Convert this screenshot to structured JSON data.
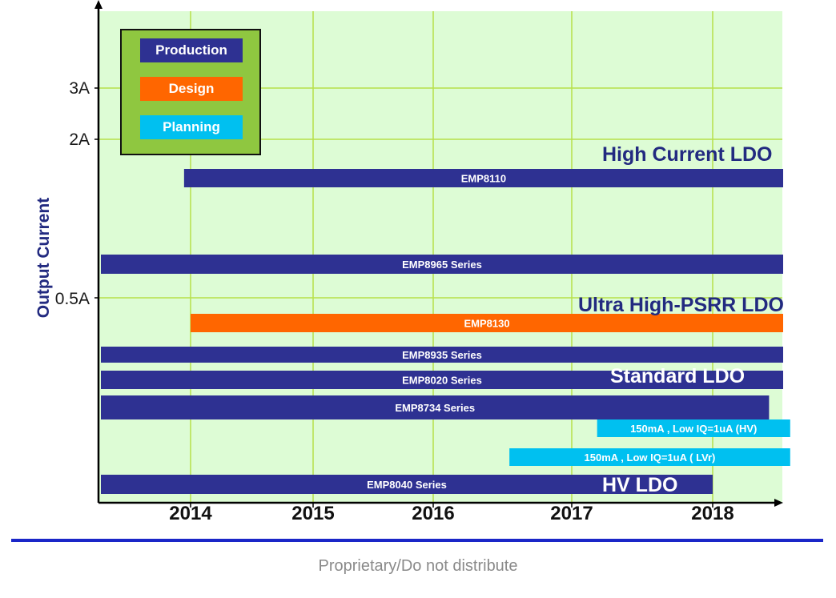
{
  "chart_data": {
    "type": "bar",
    "ylabel": "Output Current",
    "yticks": [
      "3A",
      "2A",
      "0.5A"
    ],
    "xticks": [
      "2014",
      "2015",
      "2016",
      "2017",
      "2018"
    ],
    "xlim": [
      2013.3,
      2018.5
    ],
    "legend": [
      {
        "label": "Production",
        "color": "#2e3192"
      },
      {
        "label": "Design",
        "color": "#ff6600"
      },
      {
        "label": "Planning",
        "color": "#00c0f0"
      }
    ],
    "groups": [
      {
        "label": "High Current LDO",
        "color": "#222a80"
      },
      {
        "label": "Ultra High-PSRR LDO",
        "color": "#222a80"
      },
      {
        "label": "Standard LDO",
        "color": "#ffffff"
      },
      {
        "label": "HV LDO",
        "color": "#ffffff"
      }
    ],
    "series": [
      {
        "name": "EMP8110",
        "status": "Production",
        "start": 2013.95,
        "end": 2018.5
      },
      {
        "name": "EMP8965 Series",
        "status": "Production",
        "start": 2013.3,
        "end": 2018.5
      },
      {
        "name": "EMP8130",
        "status": "Design",
        "start": 2014.0,
        "end": 2018.5
      },
      {
        "name": "EMP8935 Series",
        "status": "Production",
        "start": 2013.3,
        "end": 2018.5
      },
      {
        "name": "EMP8020 Series",
        "status": "Production",
        "start": 2013.3,
        "end": 2018.5
      },
      {
        "name": "EMP8734 Series",
        "status": "Production",
        "start": 2013.3,
        "end": 2018.4
      },
      {
        "name": "150mA , Low IQ=1uA (HV)",
        "status": "Planning",
        "start": 2017.18,
        "end": 2018.55
      },
      {
        "name": "150mA , Low IQ=1uA ( LVr)",
        "status": "Planning",
        "start": 2016.55,
        "end": 2018.55
      },
      {
        "name": "EMP8040 Series",
        "status": "Production",
        "start": 2013.3,
        "end": 2018.0
      }
    ],
    "grid": true
  },
  "footer": "Proprietary/Do not distribute"
}
